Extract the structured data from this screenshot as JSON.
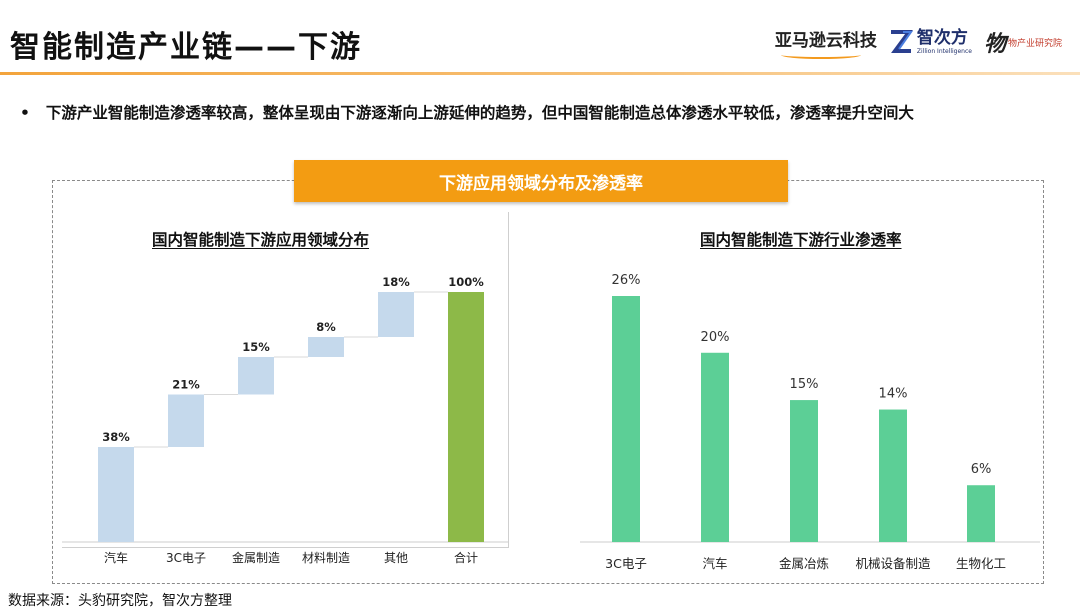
{
  "header": {
    "title": "智能制造产业链——下游",
    "logos": {
      "amazon": "亚马逊云科技",
      "zhiciyfang_cn": "智次方",
      "zhiciyfang_en": "Zillion Intelligence",
      "third_glyph": "物",
      "third_text": "物产业研究院"
    }
  },
  "bullet": {
    "marker": "•",
    "text": "下游产业智能制造渗透率较高，整体呈现由下游逐渐向上游延伸的趋势，但中国智能制造总体渗透水平较低，渗透率提升空间大"
  },
  "banner": {
    "label": "下游应用领域分布及渗透率"
  },
  "colors": {
    "accent_orange": "#f39c12",
    "waterfall_bar": "#c5d9ec",
    "total_bar": "#8db948",
    "green_bar": "#5ccf96"
  },
  "chart_data": [
    {
      "type": "bar",
      "subtype": "waterfall",
      "title": "国内智能制造下游应用领域分布",
      "categories": [
        "汽车",
        "3C电子",
        "金属制造",
        "材料制造",
        "其他",
        "合计"
      ],
      "values": [
        38,
        21,
        15,
        8,
        18,
        100
      ],
      "labels": [
        "38%",
        "21%",
        "15%",
        "8%",
        "18%",
        "100%"
      ],
      "unit": "%",
      "ylim": [
        0,
        100
      ],
      "grid": false,
      "legend": "none"
    },
    {
      "type": "bar",
      "title": "国内智能制造下游行业渗透率",
      "categories": [
        "3C电子",
        "汽车",
        "金属冶炼",
        "机械设备制造",
        "生物化工"
      ],
      "values": [
        26,
        20,
        15,
        14,
        6
      ],
      "labels": [
        "26%",
        "20%",
        "15%",
        "14%",
        "6%"
      ],
      "unit": "%",
      "ylim": [
        0,
        26
      ],
      "grid": false,
      "legend": "none"
    }
  ],
  "footer": {
    "source": "数据来源：头豹研究院，智次方整理"
  }
}
